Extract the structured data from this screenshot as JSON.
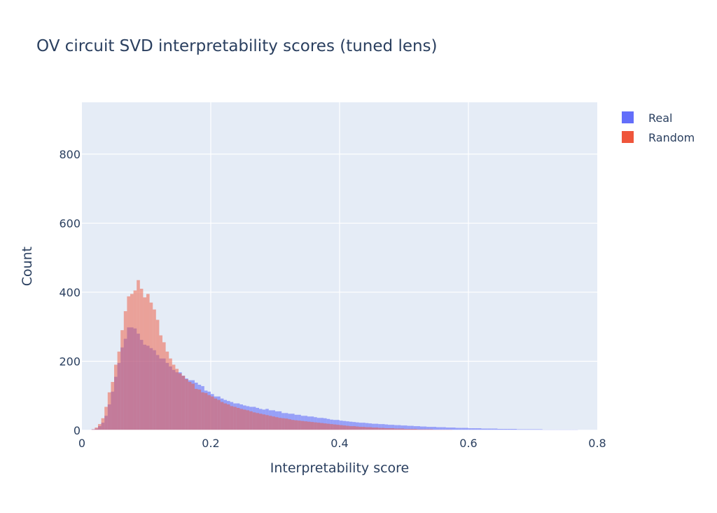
{
  "chart_data": {
    "type": "histogram",
    "title": "OV circuit SVD interpretability scores (tuned lens)",
    "xlabel": "Interpretability score",
    "ylabel": "Count",
    "xlim": [
      0,
      0.8
    ],
    "ylim": [
      0,
      950
    ],
    "xticks": [
      0,
      0.2,
      0.4,
      0.6,
      0.8
    ],
    "xtick_labels": [
      "0",
      "0.2",
      "0.4",
      "0.6",
      "0.8"
    ],
    "yticks": [
      0,
      200,
      400,
      600,
      800
    ],
    "ytick_labels": [
      "0",
      "200",
      "400",
      "600",
      "800"
    ],
    "grid": true,
    "barmode": "overlay",
    "legend_position": "top-right",
    "plot_background": "#e5ecf6",
    "series": [
      {
        "name": "Real",
        "color": "#636efa",
        "opacity": 0.6,
        "bin_start": 0.015,
        "bin_width": 0.005,
        "counts": [
          3,
          5,
          12,
          22,
          42,
          75,
          112,
          155,
          195,
          240,
          265,
          298,
          298,
          295,
          280,
          262,
          248,
          245,
          238,
          232,
          218,
          208,
          208,
          195,
          185,
          175,
          168,
          168,
          158,
          150,
          145,
          145,
          138,
          132,
          128,
          115,
          112,
          105,
          98,
          98,
          92,
          88,
          85,
          82,
          78,
          78,
          75,
          72,
          70,
          68,
          68,
          65,
          62,
          60,
          62,
          58,
          58,
          55,
          55,
          50,
          50,
          48,
          48,
          45,
          45,
          42,
          42,
          40,
          40,
          38,
          36,
          36,
          35,
          33,
          31,
          30,
          30,
          28,
          27,
          26,
          25,
          24,
          23,
          22,
          22,
          21,
          20,
          19,
          19,
          18,
          18,
          17,
          16,
          16,
          15,
          15,
          14,
          14,
          13,
          13,
          12,
          12,
          11,
          11,
          10,
          10,
          10,
          9,
          9,
          9,
          8,
          8,
          8,
          7,
          7,
          7,
          7,
          6,
          6,
          6,
          6,
          5,
          5,
          5,
          5,
          5,
          4,
          4,
          4,
          4,
          4,
          4,
          3,
          3,
          3,
          3,
          3,
          3,
          3,
          3,
          2,
          2,
          2,
          2,
          2,
          2,
          2,
          2,
          2,
          2,
          2
        ]
      },
      {
        "name": "Random",
        "color": "#ef553b",
        "opacity": 0.5,
        "bin_start": 0.015,
        "bin_width": 0.005,
        "counts": [
          3,
          8,
          18,
          35,
          68,
          110,
          140,
          190,
          228,
          290,
          345,
          388,
          395,
          405,
          435,
          410,
          385,
          395,
          370,
          350,
          320,
          275,
          255,
          228,
          208,
          190,
          178,
          165,
          158,
          148,
          140,
          135,
          120,
          118,
          110,
          108,
          102,
          98,
          92,
          88,
          82,
          78,
          75,
          70,
          68,
          65,
          62,
          60,
          58,
          55,
          52,
          50,
          48,
          46,
          44,
          42,
          40,
          38,
          36,
          35,
          34,
          32,
          30,
          29,
          28,
          27,
          26,
          25,
          24,
          23,
          22,
          21,
          20,
          19,
          18,
          17,
          16,
          15,
          14,
          13,
          12,
          12,
          11,
          10,
          10,
          9,
          9,
          8,
          8,
          7,
          7,
          6,
          6,
          6,
          5,
          5,
          5,
          4,
          4,
          4,
          4,
          3,
          3,
          3,
          3,
          3,
          2,
          2,
          2,
          2,
          2,
          2,
          1,
          1,
          1,
          1,
          1,
          1,
          1,
          1,
          1,
          1,
          1,
          1,
          1,
          1,
          0,
          0,
          0,
          0,
          0,
          0,
          0,
          0,
          0,
          0,
          0,
          0,
          0,
          0,
          0,
          0,
          0,
          0,
          0,
          0,
          0,
          0,
          0,
          0,
          0,
          0,
          0,
          0
        ]
      }
    ]
  }
}
